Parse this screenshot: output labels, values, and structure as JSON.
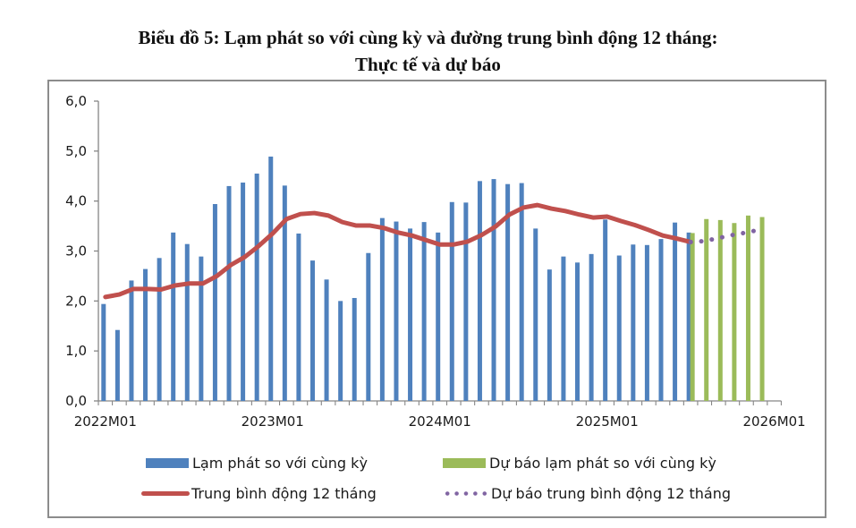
{
  "title": {
    "line1": "Biểu đồ 5: Lạm phát so với cùng kỳ và đường trung bình động 12 tháng:",
    "line2": "Thực tế và dự báo"
  },
  "legend": {
    "actual_bar": "Lạm phát so với cùng kỳ",
    "forecast_bar": "Dự báo lạm phát so với cùng kỳ",
    "ma_line": "Trung bình động 12 tháng",
    "forecast_ma": "Dự báo trung bình động 12 tháng"
  },
  "colors": {
    "actual_bar": "#4f81bd",
    "forecast_bar": "#9bbb59",
    "ma_line": "#c0504d",
    "forecast_ma": "#8064a2",
    "axis": "#868686",
    "frame": "#8c8c8c"
  },
  "chart_data": {
    "type": "bar",
    "title": "Biểu đồ 5: Lạm phát so với cùng kỳ và đường trung bình động 12 tháng: Thực tế và dự báo",
    "xlabel": "",
    "ylabel": "",
    "ylim": [
      0,
      6
    ],
    "yticks": [
      "0,0",
      "1,0",
      "2,0",
      "3,0",
      "4,0",
      "5,0",
      "6,0"
    ],
    "xtick_labels": [
      "2022M01",
      "2023M01",
      "2024M01",
      "2025M01",
      "2026M01"
    ],
    "grid": false,
    "legend_position": "bottom",
    "categories": [
      "2022M01",
      "2022M02",
      "2022M03",
      "2022M04",
      "2022M05",
      "2022M06",
      "2022M07",
      "2022M08",
      "2022M09",
      "2022M10",
      "2022M11",
      "2022M12",
      "2023M01",
      "2023M02",
      "2023M03",
      "2023M04",
      "2023M05",
      "2023M06",
      "2023M07",
      "2023M08",
      "2023M09",
      "2023M10",
      "2023M11",
      "2023M12",
      "2024M01",
      "2024M02",
      "2024M03",
      "2024M04",
      "2024M05",
      "2024M06",
      "2024M07",
      "2024M08",
      "2024M09",
      "2024M10",
      "2024M11",
      "2024M12",
      "2025M01",
      "2025M02",
      "2025M03",
      "2025M04",
      "2025M05",
      "2025M06",
      "2025M07",
      "2025M08",
      "2025M09",
      "2025M10",
      "2025M11",
      "2025M12",
      "2026M01"
    ],
    "series": [
      {
        "name": "Lạm phát so với cùng kỳ",
        "type": "bar",
        "start_index": 0,
        "values": [
          1.94,
          1.42,
          2.41,
          2.64,
          2.86,
          3.37,
          3.14,
          2.89,
          3.94,
          4.3,
          4.37,
          4.55,
          4.89,
          4.31,
          3.35,
          2.81,
          2.43,
          2.0,
          2.06,
          2.96,
          3.66,
          3.59,
          3.45,
          3.58,
          3.37,
          3.98,
          3.97,
          4.4,
          4.44,
          4.34,
          4.36,
          3.45,
          2.63,
          2.89,
          2.77,
          2.94,
          3.63,
          2.91,
          3.13,
          3.12,
          3.24,
          3.57,
          3.37
        ]
      },
      {
        "name": "Dự báo lạm phát so với cùng kỳ",
        "type": "bar",
        "start_index": 42,
        "values": [
          3.36,
          3.64,
          3.62,
          3.56,
          3.71,
          3.68
        ]
      },
      {
        "name": "Trung bình động 12 tháng",
        "type": "line",
        "start_index": 0,
        "values": [
          2.08,
          2.13,
          2.24,
          2.24,
          2.23,
          2.31,
          2.35,
          2.35,
          2.5,
          2.72,
          2.88,
          3.1,
          3.35,
          3.64,
          3.74,
          3.76,
          3.71,
          3.58,
          3.51,
          3.51,
          3.46,
          3.37,
          3.31,
          3.22,
          3.13,
          3.13,
          3.19,
          3.32,
          3.49,
          3.73,
          3.87,
          3.92,
          3.85,
          3.8,
          3.73,
          3.67,
          3.69,
          3.6,
          3.52,
          3.42,
          3.31,
          3.25,
          3.18
        ]
      },
      {
        "name": "Dự báo trung bình động 12 tháng",
        "type": "line-dotted",
        "start_index": 42,
        "values": [
          3.18,
          3.2,
          3.26,
          3.32,
          3.37,
          3.43
        ]
      }
    ]
  }
}
